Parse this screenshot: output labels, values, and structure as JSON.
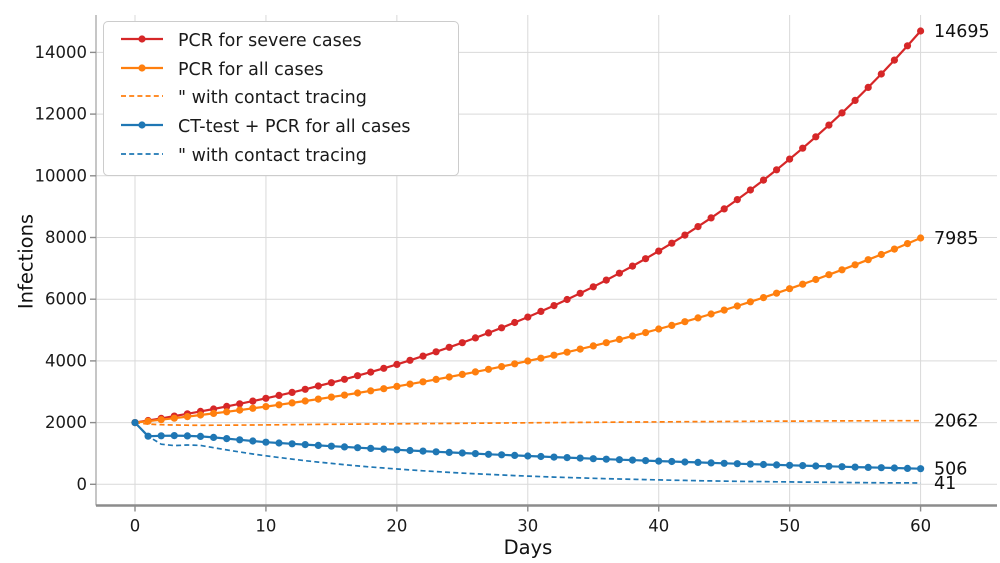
{
  "chart_data": {
    "type": "line",
    "title": "",
    "xlabel": "Days",
    "ylabel": "Infections",
    "xticks": [
      0,
      10,
      20,
      30,
      40,
      50,
      60
    ],
    "yticks": [
      0,
      2000,
      4000,
      6000,
      8000,
      10000,
      12000,
      14000
    ],
    "xlim": [
      -3,
      66
    ],
    "ylim": [
      -690,
      15200
    ],
    "grid": true,
    "legend_position": "upper left",
    "x": [
      0,
      1,
      2,
      3,
      4,
      5,
      6,
      7,
      8,
      9,
      10,
      11,
      12,
      13,
      14,
      15,
      16,
      17,
      18,
      19,
      20,
      21,
      22,
      23,
      24,
      25,
      26,
      27,
      28,
      29,
      30,
      31,
      32,
      33,
      34,
      35,
      36,
      37,
      38,
      39,
      40,
      41,
      42,
      43,
      44,
      45,
      46,
      47,
      48,
      49,
      50,
      51,
      52,
      53,
      54,
      55,
      56,
      57,
      58,
      59,
      60
    ],
    "series": [
      {
        "name": "PCR for severe cases",
        "color": "#d62728",
        "style": "solid",
        "marker": "circle",
        "end_label": "14695",
        "values": [
          2000,
          2068,
          2137,
          2210,
          2284,
          2362,
          2441,
          2524,
          2609,
          2697,
          2789,
          2883,
          2980,
          3081,
          3185,
          3293,
          3404,
          3519,
          3638,
          3761,
          3888,
          4020,
          4156,
          4296,
          4441,
          4591,
          4746,
          4907,
          5073,
          5244,
          5421,
          5605,
          5794,
          5990,
          6192,
          6402,
          6618,
          6842,
          7073,
          7312,
          7559,
          7815,
          8079,
          8352,
          8634,
          8926,
          9228,
          9539,
          9862,
          10195,
          10540,
          10896,
          11264,
          11645,
          12038,
          12445,
          12866,
          13301,
          13750,
          14215,
          14695
        ]
      },
      {
        "name": "PCR for all cases",
        "color": "#ff7f0e",
        "style": "solid",
        "marker": "circle",
        "end_label": "7985",
        "values": [
          2000,
          2047,
          2094,
          2143,
          2193,
          2245,
          2297,
          2351,
          2405,
          2462,
          2519,
          2578,
          2638,
          2700,
          2763,
          2827,
          2893,
          2961,
          3030,
          3100,
          3173,
          3247,
          3323,
          3400,
          3479,
          3561,
          3644,
          3729,
          3816,
          3905,
          3996,
          4089,
          4185,
          4282,
          4382,
          4485,
          4589,
          4696,
          4806,
          4918,
          5033,
          5151,
          5271,
          5394,
          5520,
          5648,
          5780,
          5915,
          6053,
          6195,
          6339,
          6487,
          6639,
          6793,
          6952,
          7114,
          7280,
          7450,
          7624,
          7802,
          7985
        ]
      },
      {
        "name": "\" with contact tracing",
        "color": "#ff7f0e",
        "style": "dashed",
        "marker": "none",
        "end_label": "2062",
        "values": [
          2000,
          1952,
          1931,
          1921,
          1916,
          1914,
          1915,
          1917,
          1920,
          1923,
          1927,
          1930,
          1934,
          1937,
          1941,
          1944,
          1948,
          1951,
          1955,
          1958,
          1962,
          1965,
          1968,
          1972,
          1975,
          1978,
          1981,
          1985,
          1988,
          1991,
          1994,
          1997,
          2000,
          2003,
          2006,
          2009,
          2012,
          2015,
          2018,
          2021,
          2024,
          2026,
          2029,
          2032,
          2034,
          2037,
          2039,
          2042,
          2044,
          2046,
          2048,
          2050,
          2052,
          2054,
          2056,
          2057,
          2059,
          2060,
          2061,
          2062,
          2062
        ]
      },
      {
        "name": "CT-test + PCR for all cases",
        "color": "#1f77b4",
        "style": "solid",
        "marker": "circle",
        "end_label": "506",
        "values": [
          2000,
          1560,
          1572,
          1578,
          1570,
          1552,
          1520,
          1482,
          1443,
          1404,
          1365,
          1338,
          1312,
          1286,
          1261,
          1236,
          1212,
          1188,
          1165,
          1142,
          1119,
          1097,
          1076,
          1055,
          1034,
          1014,
          994,
          974,
          955,
          936,
          918,
          900,
          882,
          865,
          848,
          831,
          815,
          799,
          783,
          768,
          753,
          738,
          723,
          709,
          695,
          682,
          668,
          655,
          642,
          630,
          617,
          605,
          593,
          582,
          570,
          559,
          548,
          537,
          527,
          516,
          506
        ]
      },
      {
        "name": "\" with contact tracing",
        "color": "#1f77b4",
        "style": "dashed",
        "marker": "none",
        "end_label": "41",
        "values": [
          2000,
          1560,
          1300,
          1255,
          1275,
          1262,
          1186,
          1114,
          1047,
          983,
          924,
          868,
          816,
          766,
          720,
          677,
          636,
          597,
          561,
          527,
          496,
          466,
          438,
          411,
          386,
          363,
          341,
          321,
          301,
          283,
          266,
          250,
          235,
          221,
          207,
          195,
          183,
          172,
          162,
          152,
          143,
          134,
          126,
          118,
          111,
          105,
          98,
          92,
          87,
          82,
          77,
          72,
          68,
          64,
          60,
          56,
          53,
          50,
          47,
          44,
          41
        ]
      }
    ],
    "colors": {
      "grid": "#d9d9d9",
      "spine_bottom": "#8c8c8c",
      "spine_left": "#b3b3b3",
      "tick": "#8c8c8c",
      "text": "#1a1a1a"
    }
  }
}
